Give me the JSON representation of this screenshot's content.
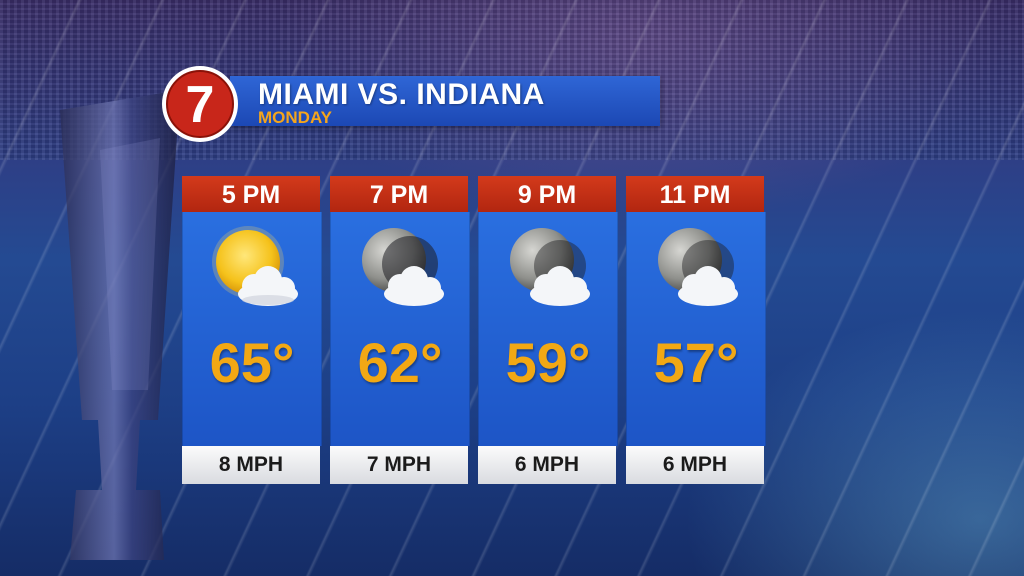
{
  "header": {
    "logo_number": "7",
    "title": "MIAMI VS. INDIANA",
    "subtitle": "MONDAY"
  },
  "colors": {
    "header_blue": "#1c48b4",
    "time_red": "#b22610",
    "panel_blue": "#1d55c6",
    "temp_orange": "#f2a814",
    "subtitle_orange": "#f4a51c"
  },
  "forecast": [
    {
      "time": "5 PM",
      "icon": "sun-cloud-icon",
      "temp": "65°",
      "wind": "8 MPH"
    },
    {
      "time": "7 PM",
      "icon": "moon-cloud-icon",
      "temp": "62°",
      "wind": "7 MPH"
    },
    {
      "time": "9 PM",
      "icon": "moon-cloud-icon",
      "temp": "59°",
      "wind": "6 MPH"
    },
    {
      "time": "11 PM",
      "icon": "moon-cloud-icon",
      "temp": "57°",
      "wind": "6 MPH"
    }
  ]
}
